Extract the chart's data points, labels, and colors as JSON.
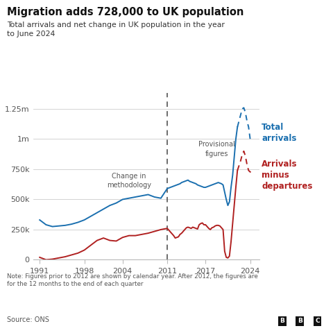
{
  "title": "Migration adds 728,000 to UK population",
  "subtitle": "Total arrivals and net change in UK population in the year\nto June 2024",
  "note": "Note: Figures prior to 2012 are shown by calendar year. After 2012, the figures are\nfor the 12 months to the end of each quarter",
  "source": "Source: ONS",
  "methodology_year": 2011,
  "background_color": "#ffffff",
  "blue_color": "#1a6faf",
  "red_color": "#b02020",
  "dashed_line_color": "#555555",
  "total_arrivals_years": [
    1991,
    1992,
    1993,
    1994,
    1995,
    1996,
    1997,
    1998,
    1999,
    2000,
    2001,
    2002,
    2003,
    2004,
    2005,
    2006,
    2007,
    2008,
    2009,
    2010,
    2011,
    2012.0,
    2012.25,
    2012.5,
    2012.75,
    2013.0,
    2013.25,
    2013.5,
    2013.75,
    2014.0,
    2014.25,
    2014.5,
    2014.75,
    2015.0,
    2015.25,
    2015.5,
    2015.75,
    2016.0,
    2016.25,
    2016.5,
    2016.75,
    2017.0,
    2017.25,
    2017.5,
    2017.75,
    2018.0,
    2018.25,
    2018.5,
    2018.75,
    2019.0,
    2019.25,
    2019.5,
    2019.75,
    2020.0,
    2020.25,
    2020.5,
    2020.75,
    2021.0,
    2021.25,
    2021.5,
    2021.75,
    2022.0,
    2022.25,
    2022.5,
    2022.75,
    2023.0,
    2023.25,
    2023.5,
    2023.75,
    2024.0,
    2024.25
  ],
  "total_arrivals_values": [
    330000,
    290000,
    275000,
    280000,
    285000,
    295000,
    310000,
    330000,
    360000,
    390000,
    420000,
    450000,
    470000,
    500000,
    510000,
    520000,
    530000,
    540000,
    520000,
    510000,
    590000,
    610000,
    615000,
    620000,
    625000,
    630000,
    640000,
    645000,
    650000,
    655000,
    660000,
    650000,
    645000,
    640000,
    635000,
    630000,
    620000,
    615000,
    610000,
    605000,
    600000,
    600000,
    605000,
    610000,
    615000,
    620000,
    625000,
    630000,
    635000,
    640000,
    635000,
    630000,
    620000,
    560000,
    500000,
    450000,
    480000,
    600000,
    700000,
    850000,
    1000000,
    1100000,
    1150000,
    1200000,
    1250000,
    1260000,
    1220000,
    1150000,
    1100000,
    1000000,
    980000
  ],
  "net_migration_years": [
    1991,
    1992,
    1993,
    1994,
    1995,
    1996,
    1997,
    1998,
    1999,
    2000,
    2001,
    2002,
    2003,
    2004,
    2005,
    2006,
    2007,
    2008,
    2009,
    2010,
    2011,
    2012.0,
    2012.25,
    2012.5,
    2012.75,
    2013.0,
    2013.25,
    2013.5,
    2013.75,
    2014.0,
    2014.25,
    2014.5,
    2014.75,
    2015.0,
    2015.25,
    2015.5,
    2015.75,
    2016.0,
    2016.25,
    2016.5,
    2016.75,
    2017.0,
    2017.25,
    2017.5,
    2017.75,
    2018.0,
    2018.25,
    2018.5,
    2018.75,
    2019.0,
    2019.25,
    2019.5,
    2019.75,
    2020.0,
    2020.25,
    2020.5,
    2020.75,
    2021.0,
    2021.25,
    2021.5,
    2021.75,
    2022.0,
    2022.25,
    2022.5,
    2022.75,
    2023.0,
    2023.25,
    2023.5,
    2023.75,
    2024.0,
    2024.25
  ],
  "net_migration_values": [
    20000,
    0,
    5000,
    15000,
    25000,
    40000,
    55000,
    80000,
    120000,
    160000,
    180000,
    160000,
    155000,
    185000,
    200000,
    200000,
    210000,
    220000,
    235000,
    250000,
    260000,
    200000,
    180000,
    185000,
    190000,
    210000,
    220000,
    235000,
    250000,
    265000,
    270000,
    265000,
    260000,
    270000,
    265000,
    260000,
    255000,
    290000,
    300000,
    305000,
    290000,
    290000,
    275000,
    260000,
    250000,
    265000,
    270000,
    280000,
    285000,
    285000,
    280000,
    265000,
    250000,
    70000,
    20000,
    15000,
    30000,
    150000,
    300000,
    450000,
    600000,
    740000,
    780000,
    820000,
    870000,
    900000,
    860000,
    790000,
    740000,
    728000,
    720000
  ],
  "ylim": [
    0,
    1380000
  ],
  "yticks": [
    0,
    250000,
    500000,
    750000,
    1000000,
    1250000
  ],
  "ytick_labels": [
    "0",
    "250k",
    "500k",
    "750k",
    "1m",
    "1.25m"
  ],
  "xlim": [
    1990.0,
    2025.5
  ],
  "xticks": [
    1991,
    1998,
    2004,
    2011,
    2017,
    2024
  ],
  "provisional_split_year": 2022.0
}
